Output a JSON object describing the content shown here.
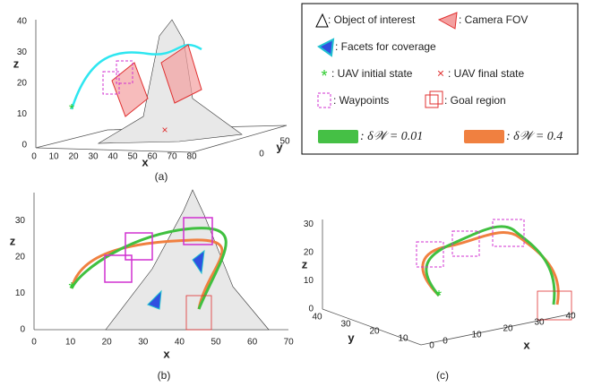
{
  "panels": [
    {
      "caption": "(a)",
      "z_label": "z",
      "x_label": "x",
      "y_label": "y",
      "z_ticks": [
        0,
        10,
        20,
        30,
        40
      ],
      "x_ticks": [
        0,
        10,
        20,
        30,
        40,
        50,
        60,
        70,
        80
      ],
      "y_ticks": [
        0,
        50
      ]
    },
    {
      "caption": "(b)",
      "z_label": "z",
      "x_label": "x",
      "z_ticks": [
        0,
        10,
        20,
        30
      ],
      "x_ticks": [
        0,
        10,
        20,
        30,
        40,
        50,
        60,
        70
      ]
    },
    {
      "caption": "(c)",
      "z_label": "z",
      "x_label": "x",
      "y_label": "y",
      "z_ticks": [
        0,
        10,
        20,
        30
      ],
      "x_ticks": [
        0,
        10,
        20,
        30,
        40
      ],
      "y_ticks": [
        0,
        10,
        20,
        30,
        40
      ]
    }
  ],
  "legend": {
    "object": ": Object of interest",
    "fov": ": Camera FOV",
    "facets": ": Facets for coverage",
    "initial": ": UAV initial state",
    "final": ": UAV final state",
    "waypoints": ": Waypoints",
    "goal": ": Goal region",
    "delta_small": ": δ𝒲 = 0.01",
    "delta_large": ": δ𝒲 = 0.4"
  }
}
